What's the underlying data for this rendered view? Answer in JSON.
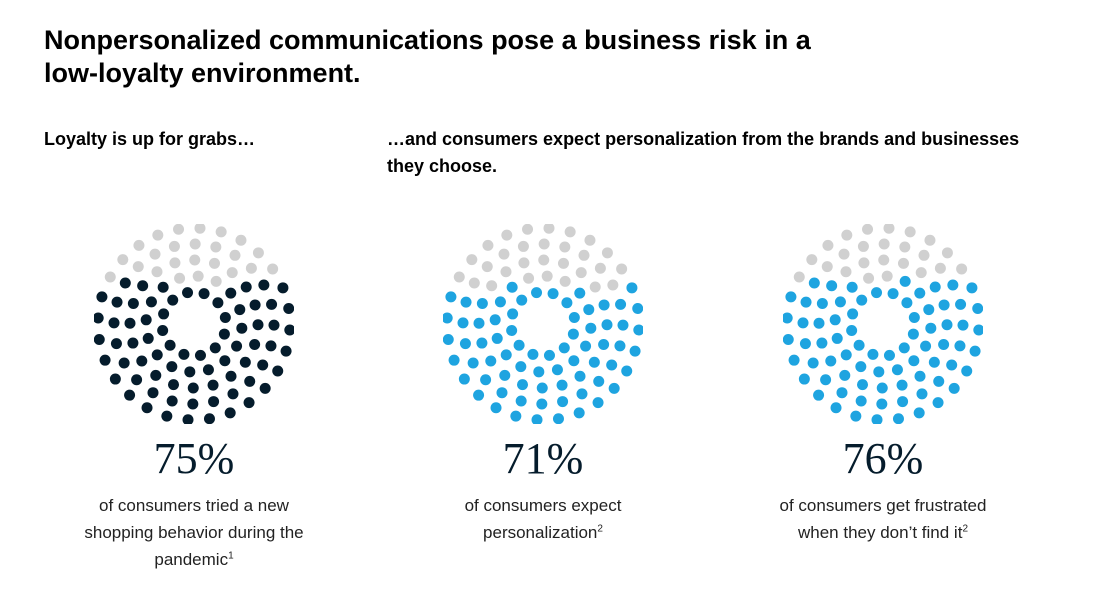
{
  "title": "Nonpersonalized communications pose a business risk in a low-loyalty environment.",
  "subheads": {
    "left": "Loyalty is up for grabs…",
    "right": "…and consumers expect personalization from the brands and businesses they choose."
  },
  "colors": {
    "inactive": "#d0d0d0",
    "dark": "#051c2c",
    "blue": "#1ea4e0"
  },
  "chart_data": [
    {
      "type": "dot-matrix",
      "value": 75,
      "label": "75%",
      "caption": "of consumers tried a new shopping behavior during the pandemic",
      "footnote": "1",
      "color": "#051c2c"
    },
    {
      "type": "dot-matrix",
      "value": 71,
      "label": "71%",
      "caption": "of consumers expect personalization",
      "footnote": "2",
      "color": "#1ea4e0"
    },
    {
      "type": "dot-matrix",
      "value": 76,
      "label": "76%",
      "caption": "of consumers get frustrated when they don’t find it",
      "footnote": "2",
      "color": "#1ea4e0"
    }
  ]
}
